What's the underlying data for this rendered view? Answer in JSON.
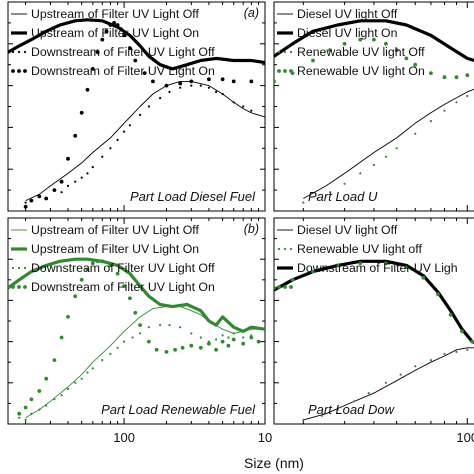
{
  "figure": {
    "xlabel": "Size (nm)",
    "bottom_tick_labels": [
      {
        "panel": 2,
        "x": 100,
        "text": "100"
      },
      {
        "panel": 2,
        "x": 1000,
        "text": "10"
      },
      {
        "panel": 3,
        "x": 100,
        "text": "100"
      }
    ]
  },
  "chart_data": [
    {
      "type": "line",
      "panel_label": "(a)",
      "annotation": "Part Load Diesel Fuel",
      "xscale": "log",
      "xlim": [
        15,
        1000
      ],
      "ylim": [
        0,
        1
      ],
      "legend_placement": "top-left",
      "series": [
        {
          "name": "Upstream of Filter UV Light Off",
          "style": "thin",
          "color": "#000000",
          "x": [
            20,
            25,
            30,
            40,
            50,
            60,
            80,
            100,
            130,
            160,
            200,
            250,
            300,
            400,
            500,
            600,
            700,
            800,
            1000
          ],
          "y": [
            0.05,
            0.08,
            0.12,
            0.18,
            0.23,
            0.28,
            0.35,
            0.42,
            0.5,
            0.56,
            0.6,
            0.62,
            0.62,
            0.6,
            0.56,
            0.52,
            0.49,
            0.47,
            0.45
          ]
        },
        {
          "name": "Upstream of Filter UV Light On",
          "style": "thick",
          "color": "#000000",
          "x": [
            15,
            18,
            22,
            28,
            35,
            45,
            55,
            70,
            90,
            110,
            130,
            150,
            180,
            220,
            280,
            350,
            450,
            600,
            800,
            1000
          ],
          "y": [
            0.76,
            0.79,
            0.82,
            0.86,
            0.89,
            0.91,
            0.915,
            0.91,
            0.88,
            0.84,
            0.79,
            0.74,
            0.7,
            0.68,
            0.7,
            0.72,
            0.73,
            0.72,
            0.72,
            0.71
          ]
        },
        {
          "name": "Downstream of Filter UV Light Off",
          "style": "open-dots",
          "color": "#000000",
          "x": [
            20,
            22,
            25,
            28,
            32,
            36,
            40,
            45,
            50,
            55,
            60,
            70,
            80,
            90,
            100,
            110,
            130,
            150,
            180,
            210,
            250,
            300,
            350,
            400,
            450,
            500,
            600,
            700,
            800
          ],
          "y": [
            0.04,
            0.05,
            0.07,
            0.06,
            0.1,
            0.09,
            0.12,
            0.14,
            0.16,
            0.18,
            0.21,
            0.26,
            0.3,
            0.34,
            0.38,
            0.41,
            0.46,
            0.5,
            0.54,
            0.57,
            0.59,
            0.6,
            0.6,
            0.59,
            0.57,
            0.56,
            0.52,
            0.5,
            0.48
          ]
        },
        {
          "name": "Downstream of Filter UV Light On",
          "style": "filled-dots",
          "color": "#000000",
          "x": [
            20,
            22,
            25,
            28,
            32,
            36,
            40,
            45,
            50,
            55,
            60,
            65,
            70,
            75,
            80,
            85,
            90,
            95,
            100,
            110,
            120,
            140,
            160,
            200,
            250,
            300,
            400,
            500,
            600,
            800
          ],
          "y": [
            0.02,
            0.05,
            0.07,
            0.06,
            0.1,
            0.14,
            0.25,
            0.36,
            0.47,
            0.58,
            0.68,
            0.76,
            0.82,
            0.86,
            0.89,
            0.9,
            0.89,
            0.87,
            0.84,
            0.78,
            0.72,
            0.66,
            0.62,
            0.6,
            0.61,
            0.62,
            0.63,
            0.63,
            0.62,
            0.62
          ]
        }
      ]
    },
    {
      "type": "line",
      "annotation": "Part Load U",
      "xscale": "log",
      "xlim": [
        15,
        130
      ],
      "ylim": [
        0,
        1
      ],
      "legend_placement": "top-left",
      "series": [
        {
          "name": "Diesel UV light Off",
          "style": "thin",
          "color": "#000000",
          "x": [
            20,
            25,
            30,
            40,
            50,
            60,
            70,
            80,
            100,
            130
          ],
          "y": [
            0.06,
            0.12,
            0.18,
            0.28,
            0.35,
            0.42,
            0.47,
            0.51,
            0.57,
            0.62
          ]
        },
        {
          "name": "Diesel UV light On",
          "style": "thick",
          "color": "#000000",
          "x": [
            15,
            18,
            22,
            28,
            35,
            45,
            55,
            70,
            85,
            100,
            115,
            130
          ],
          "y": [
            0.74,
            0.8,
            0.86,
            0.89,
            0.91,
            0.91,
            0.89,
            0.84,
            0.78,
            0.73,
            0.71,
            0.7
          ]
        },
        {
          "name": "Renewable UV light Off",
          "style": "open-dots",
          "color": "#2e8b2e",
          "x": [
            20,
            23,
            26,
            30,
            35,
            40,
            45,
            50,
            60,
            70,
            80,
            90,
            100,
            115,
            130
          ],
          "y": [
            0.04,
            0.06,
            0.09,
            0.13,
            0.18,
            0.22,
            0.26,
            0.3,
            0.37,
            0.43,
            0.48,
            0.52,
            0.55,
            0.59,
            0.62
          ]
        },
        {
          "name": "Renewable UV light On",
          "style": "filled-dots",
          "color": "#2e8b2e",
          "x": [
            15,
            18,
            22,
            26,
            30,
            35,
            40,
            45,
            50,
            55,
            60,
            70,
            80,
            90,
            100,
            115,
            130
          ],
          "y": [
            0.62,
            0.66,
            0.72,
            0.77,
            0.8,
            0.82,
            0.82,
            0.8,
            0.77,
            0.73,
            0.7,
            0.66,
            0.64,
            0.64,
            0.65,
            0.66,
            0.67
          ]
        }
      ]
    },
    {
      "type": "line",
      "panel_label": "(b)",
      "annotation": "Part Load Renewable Fuel",
      "xscale": "log",
      "xlim": [
        15,
        1000
      ],
      "ylim": [
        0,
        1
      ],
      "legend_placement": "top-left",
      "series": [
        {
          "name": "Upstream of Filter UV Light Off",
          "style": "thin",
          "color": "#2e8b2e",
          "x": [
            20,
            25,
            30,
            40,
            50,
            60,
            80,
            100,
            130,
            160,
            200,
            250,
            300,
            350,
            400,
            500,
            600,
            700,
            800,
            1000
          ],
          "y": [
            0.03,
            0.07,
            0.11,
            0.18,
            0.24,
            0.3,
            0.38,
            0.45,
            0.52,
            0.56,
            0.57,
            0.57,
            0.55,
            0.53,
            0.5,
            0.46,
            0.44,
            0.45,
            0.46,
            0.46
          ]
        },
        {
          "name": "Upstream of Filter UV Light On",
          "style": "thick",
          "color": "#2e8b2e",
          "x": [
            15,
            18,
            22,
            28,
            35,
            45,
            55,
            70,
            90,
            110,
            130,
            150,
            180,
            220,
            280,
            350,
            400,
            450,
            500,
            600,
            700,
            800,
            1000
          ],
          "y": [
            0.66,
            0.7,
            0.74,
            0.77,
            0.79,
            0.8,
            0.8,
            0.79,
            0.77,
            0.73,
            0.67,
            0.62,
            0.58,
            0.57,
            0.58,
            0.55,
            0.5,
            0.48,
            0.52,
            0.47,
            0.45,
            0.47,
            0.46
          ]
        },
        {
          "name": "Downstream of Filter UV Light Off",
          "style": "open-dots",
          "color": "#2e8b2e",
          "x": [
            18,
            20,
            22,
            25,
            28,
            32,
            36,
            40,
            45,
            50,
            55,
            60,
            70,
            80,
            90,
            100,
            115,
            130,
            150,
            180,
            210,
            250,
            300,
            350,
            400,
            450,
            500,
            550,
            600,
            700,
            800
          ],
          "y": [
            0.03,
            0.02,
            0.05,
            0.07,
            0.09,
            0.12,
            0.14,
            0.17,
            0.2,
            0.22,
            0.25,
            0.27,
            0.31,
            0.34,
            0.37,
            0.4,
            0.42,
            0.44,
            0.47,
            0.48,
            0.48,
            0.47,
            0.44,
            0.42,
            0.4,
            0.41,
            0.43,
            0.42,
            0.44,
            0.42,
            0.43
          ]
        },
        {
          "name": "Downstream of Filter UV Light On",
          "style": "filled-dots",
          "color": "#2e8b2e",
          "x": [
            18,
            20,
            22,
            25,
            28,
            32,
            36,
            40,
            45,
            50,
            55,
            60,
            65,
            70,
            80,
            90,
            100,
            110,
            120,
            130,
            150,
            170,
            200,
            230,
            260,
            300,
            350,
            400,
            450,
            500,
            550,
            600,
            700,
            800,
            900
          ],
          "y": [
            0.05,
            0.08,
            0.12,
            0.16,
            0.22,
            0.31,
            0.42,
            0.52,
            0.62,
            0.7,
            0.75,
            0.78,
            0.79,
            0.79,
            0.77,
            0.73,
            0.67,
            0.61,
            0.54,
            0.48,
            0.4,
            0.36,
            0.35,
            0.36,
            0.37,
            0.38,
            0.37,
            0.39,
            0.36,
            0.4,
            0.38,
            0.41,
            0.39,
            0.42,
            0.4
          ]
        }
      ]
    },
    {
      "type": "line",
      "annotation": "Part Load Dow",
      "xscale": "log",
      "xlim": [
        15,
        130
      ],
      "ylim": [
        0,
        1
      ],
      "legend_placement": "top-left",
      "series": [
        {
          "name": "Diesel UV light Off",
          "style": "thin",
          "color": "#000000",
          "x": [
            20,
            25,
            30,
            40,
            50,
            60,
            70,
            80,
            90,
            100,
            110,
            120,
            130
          ],
          "y": [
            0.02,
            0.05,
            0.09,
            0.15,
            0.21,
            0.26,
            0.3,
            0.33,
            0.36,
            0.37,
            0.37,
            0.38,
            0.38
          ]
        },
        {
          "name": "Renewable UV light off",
          "style": "open-dots",
          "color": "#2e8b2e",
          "x": [
            20,
            24,
            28,
            33,
            38,
            45,
            52,
            60,
            70,
            80,
            90,
            100,
            110,
            120,
            130
          ],
          "y": [
            0.02,
            0.04,
            0.07,
            0.11,
            0.15,
            0.2,
            0.24,
            0.28,
            0.31,
            0.34,
            0.35,
            0.36,
            0.37,
            0.36,
            0.37
          ]
        },
        {
          "name": "Downstream of Filter UV Ligh",
          "style": "thick",
          "color": "#000000",
          "x": [
            15,
            18,
            22,
            28,
            35,
            45,
            55,
            65,
            75,
            85,
            95,
            105,
            115,
            125,
            130
          ],
          "y": [
            0.65,
            0.7,
            0.74,
            0.77,
            0.79,
            0.79,
            0.77,
            0.72,
            0.64,
            0.55,
            0.46,
            0.4,
            0.38,
            0.39,
            0.38
          ]
        },
        {
          "name": "",
          "style": "filled-dots",
          "color": "#2e8b2e",
          "x": [
            15,
            18,
            22,
            28,
            35,
            45,
            55,
            65,
            75,
            85,
            95,
            105,
            115,
            125,
            130
          ],
          "y": [
            0.66,
            0.7,
            0.74,
            0.77,
            0.78,
            0.78,
            0.76,
            0.71,
            0.63,
            0.53,
            0.45,
            0.4,
            0.39,
            0.4,
            0.39
          ]
        }
      ]
    }
  ]
}
